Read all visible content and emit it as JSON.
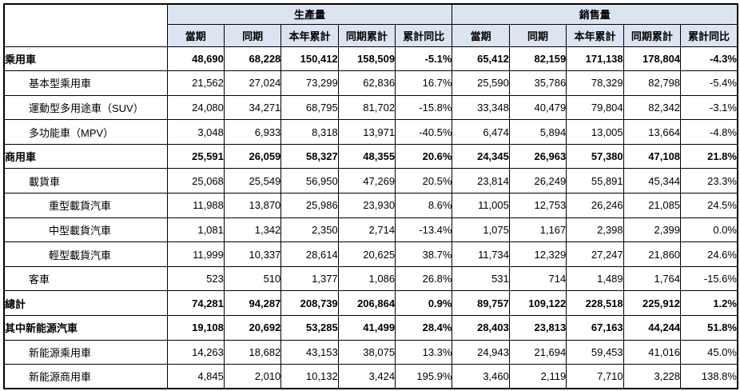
{
  "table": {
    "groups": [
      {
        "label": "生產量"
      },
      {
        "label": "銷售量"
      }
    ],
    "sub_headers": [
      "當期",
      "同期",
      "本年累計",
      "同期累計",
      "累計同比"
    ],
    "rows": [
      {
        "label": "乘用車",
        "indent": 0,
        "bold": true,
        "values": [
          "48,690",
          "68,228",
          "150,412",
          "158,509",
          "-5.1%",
          "65,412",
          "82,159",
          "171,138",
          "178,804",
          "-4.3%"
        ]
      },
      {
        "label": "基本型乘用車",
        "indent": 1,
        "bold": false,
        "values": [
          "21,562",
          "27,024",
          "73,299",
          "62,836",
          "16.7%",
          "25,590",
          "35,786",
          "78,329",
          "82,798",
          "-5.4%"
        ]
      },
      {
        "label": "運動型多用途車（SUV）",
        "indent": 1,
        "bold": false,
        "values": [
          "24,080",
          "34,271",
          "68,795",
          "81,702",
          "-15.8%",
          "33,348",
          "40,479",
          "79,804",
          "82,342",
          "-3.1%"
        ]
      },
      {
        "label": "多功能車（MPV）",
        "indent": 1,
        "bold": false,
        "values": [
          "3,048",
          "6,933",
          "8,318",
          "13,971",
          "-40.5%",
          "6,474",
          "5,894",
          "13,005",
          "13,664",
          "-4.8%"
        ]
      },
      {
        "label": "商用車",
        "indent": 0,
        "bold": true,
        "values": [
          "25,591",
          "26,059",
          "58,327",
          "48,355",
          "20.6%",
          "24,345",
          "26,963",
          "57,380",
          "47,108",
          "21.8%"
        ]
      },
      {
        "label": "載貨車",
        "indent": 1,
        "bold": false,
        "values": [
          "25,068",
          "25,549",
          "56,950",
          "47,269",
          "20.5%",
          "23,814",
          "26,249",
          "55,891",
          "45,344",
          "23.3%"
        ]
      },
      {
        "label": "重型載貨汽車",
        "indent": 2,
        "bold": false,
        "values": [
          "11,988",
          "13,870",
          "25,986",
          "23,930",
          "8.6%",
          "11,005",
          "12,753",
          "26,246",
          "21,085",
          "24.5%"
        ]
      },
      {
        "label": "中型載貨汽車",
        "indent": 2,
        "bold": false,
        "values": [
          "1,081",
          "1,342",
          "2,350",
          "2,714",
          "-13.4%",
          "1,075",
          "1,167",
          "2,398",
          "2,399",
          "0.0%"
        ]
      },
      {
        "label": "輕型載貨汽車",
        "indent": 2,
        "bold": false,
        "values": [
          "11,999",
          "10,337",
          "28,614",
          "20,625",
          "38.7%",
          "11,734",
          "12,329",
          "27,247",
          "21,860",
          "24.6%"
        ]
      },
      {
        "label": "客車",
        "indent": 1,
        "bold": false,
        "values": [
          "523",
          "510",
          "1,377",
          "1,086",
          "26.8%",
          "531",
          "714",
          "1,489",
          "1,764",
          "-15.6%"
        ]
      },
      {
        "label": "總計",
        "indent": 0,
        "bold": true,
        "values": [
          "74,281",
          "94,287",
          "208,739",
          "206,864",
          "0.9%",
          "89,757",
          "109,122",
          "228,518",
          "225,912",
          "1.2%"
        ]
      },
      {
        "label": "其中新能源汽車",
        "indent": 0,
        "bold": true,
        "values": [
          "19,108",
          "20,692",
          "53,285",
          "41,499",
          "28.4%",
          "28,403",
          "23,813",
          "67,163",
          "44,244",
          "51.8%"
        ]
      },
      {
        "label": "新能源乘用車",
        "indent": 1,
        "bold": false,
        "values": [
          "14,263",
          "18,682",
          "43,153",
          "38,075",
          "13.3%",
          "24,943",
          "21,694",
          "59,453",
          "41,016",
          "45.0%"
        ]
      },
      {
        "label": "新能源商用車",
        "indent": 1,
        "bold": false,
        "values": [
          "4,845",
          "2,010",
          "10,132",
          "3,424",
          "195.9%",
          "3,460",
          "2,119",
          "7,710",
          "3,228",
          "138.8%"
        ]
      }
    ]
  }
}
